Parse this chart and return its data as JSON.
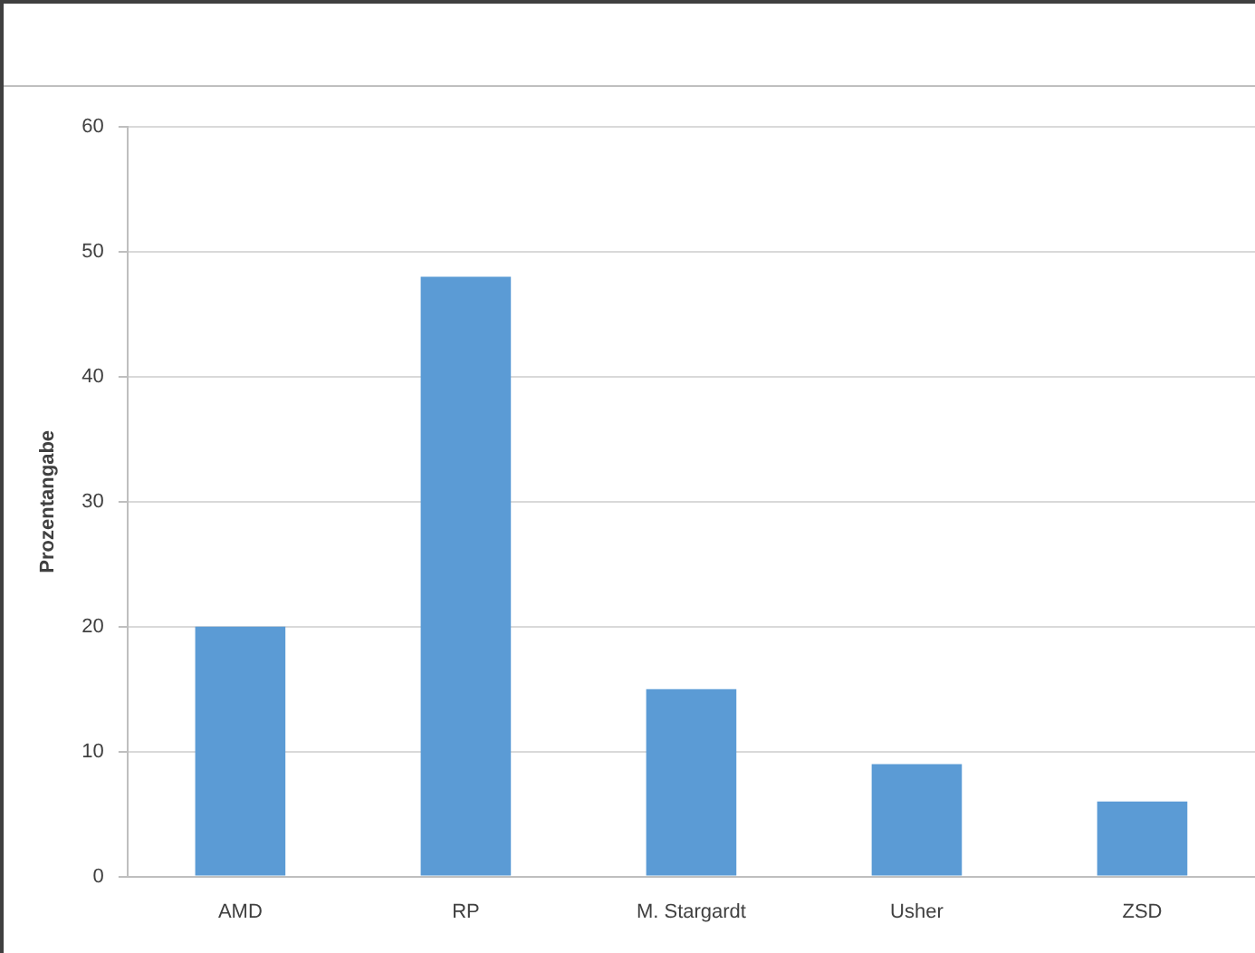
{
  "chart_data": {
    "type": "bar",
    "ylabel": "Prozentangabe",
    "categories": [
      "AMD",
      "RP",
      "M. Stargardt",
      "Usher",
      "ZSD"
    ],
    "values": [
      20,
      48,
      15,
      9,
      6
    ],
    "color": "#5b9bd5",
    "ylim": [
      0,
      60
    ],
    "yticks": [
      0,
      10,
      20,
      30,
      40,
      50,
      60
    ],
    "grid": "y",
    "legend": false
  }
}
